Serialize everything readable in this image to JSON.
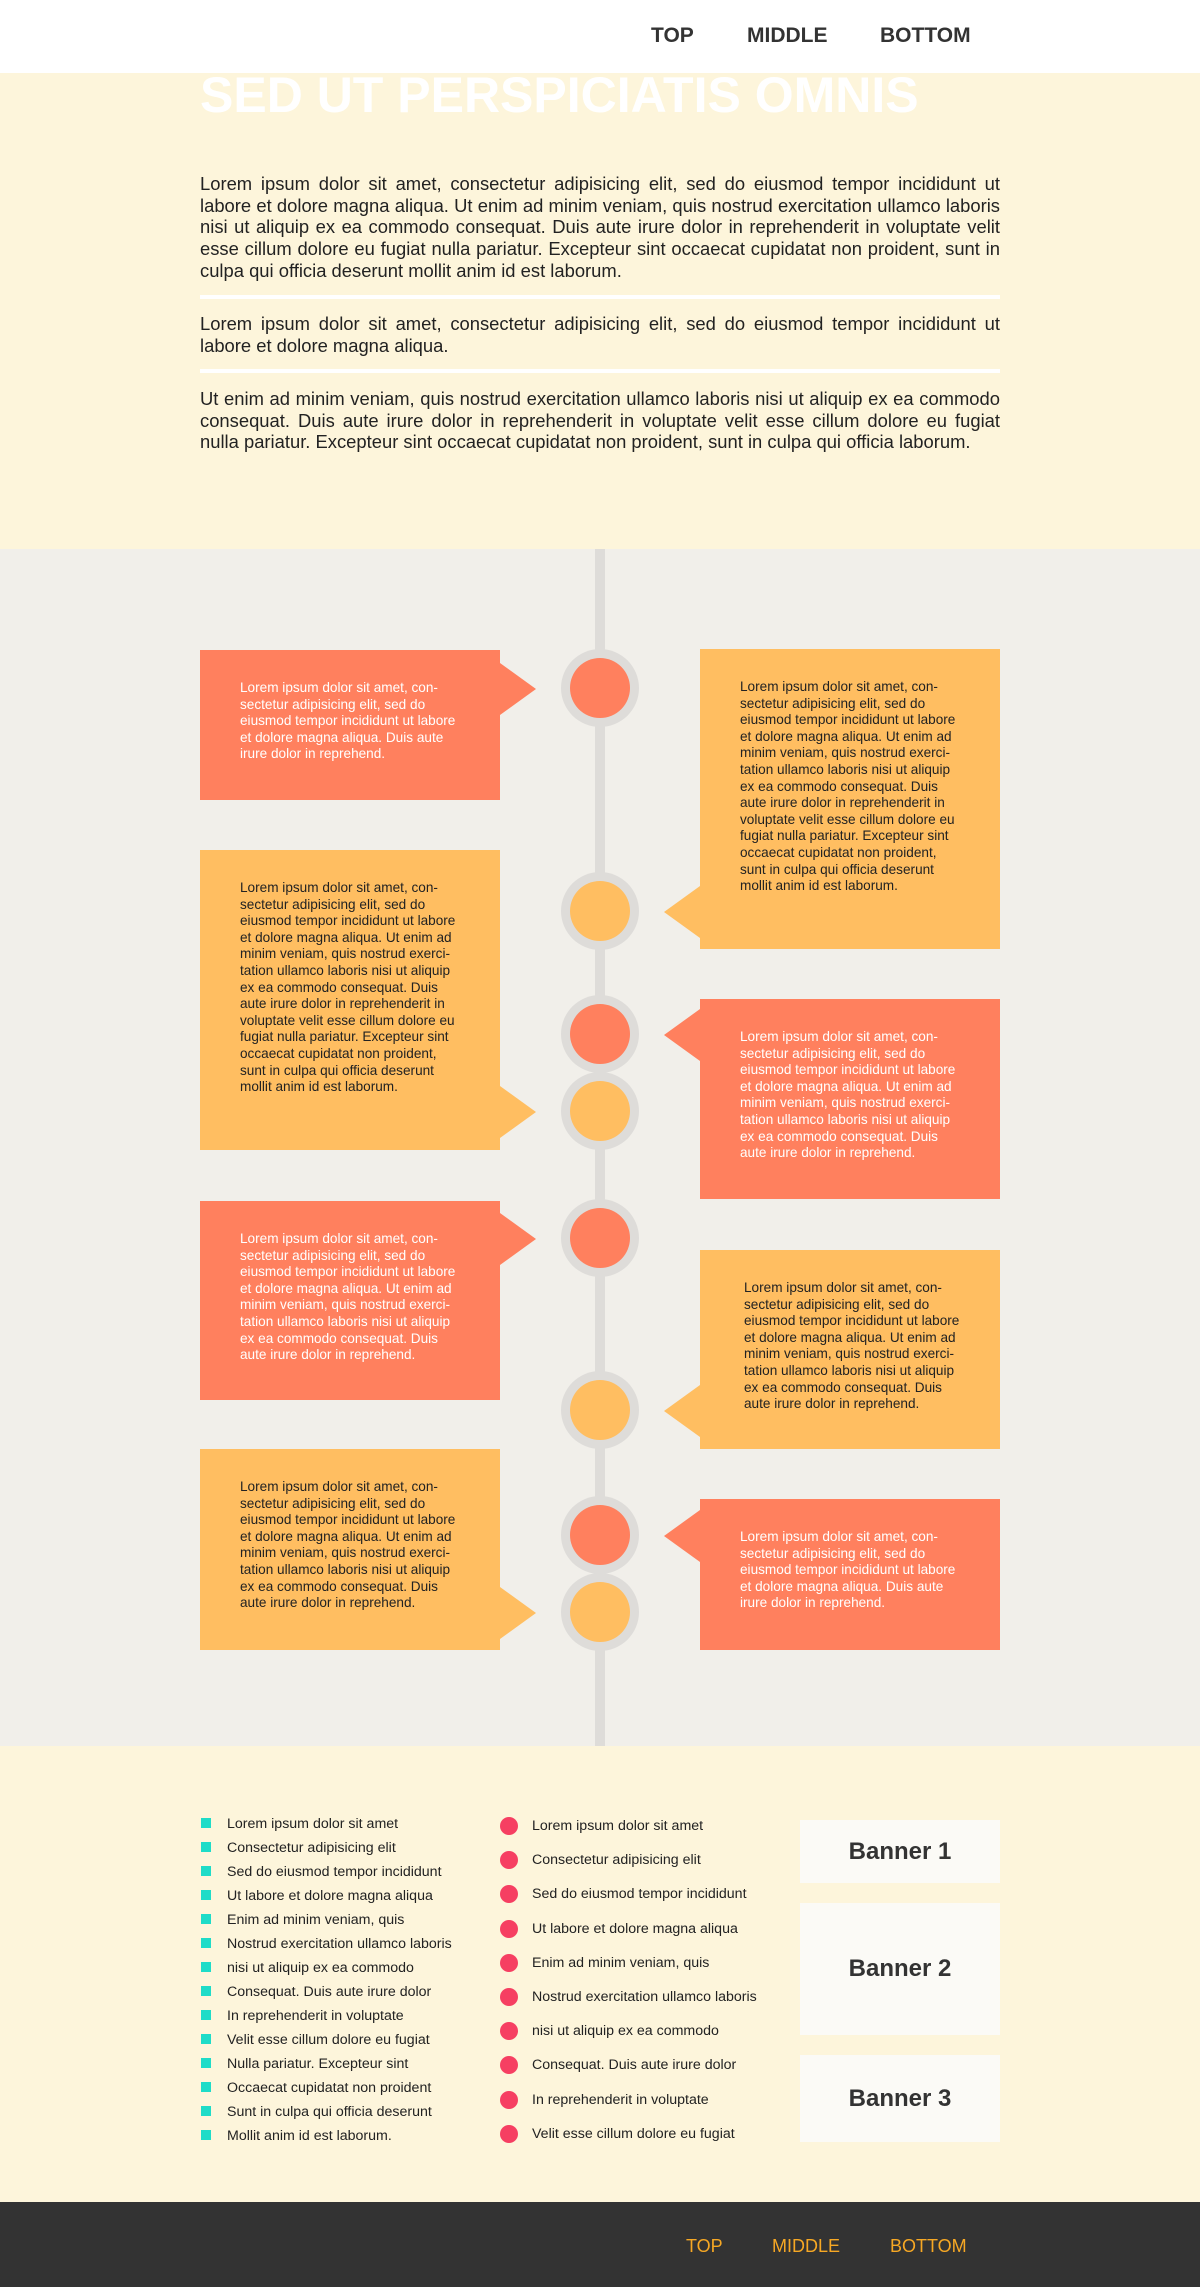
{
  "nav": {
    "top": "TOP",
    "middle": "MIDDLE",
    "bottom": "BOTTOM"
  },
  "hero": {
    "title": "SED UT PERSPICIATIS OMNIS",
    "p1": "Lorem ipsum dolor sit amet, consectetur adipisicing elit, sed do eiusmod tempor incididunt ut labore et dolore magna aliqua. Ut enim ad minim veniam, quis nostrud exercitation ullamco laboris nisi ut aliquip ex ea commodo consequat. Duis aute irure dolor in reprehenderit in voluptate velit esse cillum dolore eu fugiat nulla pariatur. Excepteur sint occaecat cupidatat non proident, sunt in culpa qui officia deserunt mollit anim id est laborum.",
    "p2": "Lorem ipsum dolor sit amet, consectetur adipisicing elit, sed do eiusmod tempor incididunt ut labore et dolore magna aliqua.",
    "p3": "Ut enim ad minim veniam, quis nostrud exercitation ullamco laboris nisi ut aliquip ex ea commodo consequat. Duis aute irure dolor in reprehenderit in voluptate velit esse cillum dolore eu fugiat nulla pariatur. Excepteur sint occaecat cupidatat non proident, sunt in culpa qui officia laborum."
  },
  "timeline": {
    "entries": [
      {
        "text": "Lorem ipsum dolor sit amet, con-sectetur adipisicing elit, sed do eiusmod tempor incididunt ut labore et dolore magna aliqua. Duis aute irure dolor in reprehend.",
        "color": "coral",
        "side": "left"
      },
      {
        "text": "Lorem ipsum dolor sit amet, con-sectetur adipisicing elit, sed do eiusmod tempor incididunt ut labore et dolore magna aliqua. Ut enim ad minim veniam, quis nostrud exerci-tation ullamco laboris nisi ut aliquip ex ea commodo consequat. Duis aute irure dolor in reprehenderit in voluptate velit esse cillum dolore eu fugiat nulla pariatur. Excepteur sint occaecat cupidatat non proident, sunt in culpa qui officia deserunt mollit anim id est laborum.",
        "color": "gold",
        "side": "right"
      },
      {
        "text": "Lorem ipsum dolor sit amet, con-sectetur adipisicing elit, sed do eiusmod tempor incididunt ut labore et dolore magna aliqua. Ut enim ad minim veniam, quis nostrud exerci-tation ullamco laboris nisi ut aliquip ex ea commodo consequat. Duis aute irure dolor in reprehenderit in voluptate velit esse cillum dolore eu fugiat nulla pariatur. Excepteur sint occaecat cupidatat non proident, sunt in culpa qui officia deserunt mollit anim id est laborum.",
        "color": "gold",
        "side": "left"
      },
      {
        "text": "Lorem ipsum dolor sit amet, con-sectetur adipisicing elit, sed do eiusmod tempor incididunt ut labore et dolore magna aliqua. Ut enim ad minim veniam, quis nostrud exerci-tation ullamco laboris nisi ut aliquip ex ea commodo consequat. Duis aute irure dolor in reprehend.",
        "color": "coral",
        "side": "right"
      },
      {
        "text": "Lorem ipsum dolor sit amet, con-sectetur adipisicing elit, sed do eiusmod tempor incididunt ut labore et dolore magna aliqua. Ut enim ad minim veniam, quis nostrud exerci-tation ullamco laboris nisi ut aliquip ex ea commodo consequat. Duis aute irure dolor in reprehend.",
        "color": "coral",
        "side": "left"
      },
      {
        "text": "Lorem ipsum dolor sit amet, con-sectetur adipisicing elit, sed do eiusmod tempor incididunt ut labore et dolore magna aliqua. Ut enim ad minim veniam, quis nostrud exerci-tation ullamco laboris nisi ut aliquip ex ea commodo consequat. Duis aute irure dolor in reprehend.",
        "color": "gold",
        "side": "right"
      },
      {
        "text": "Lorem ipsum dolor sit amet, con-sectetur adipisicing elit, sed do eiusmod tempor incididunt ut labore et dolore magna aliqua. Ut enim ad minim veniam, quis nostrud exerci-tation ullamco laboris nisi ut aliquip ex ea commodo consequat. Duis aute irure dolor in reprehend.",
        "color": "gold",
        "side": "left"
      },
      {
        "text": "Lorem ipsum dolor sit amet, con-sectetur adipisicing elit, sed do eiusmod tempor incididunt ut labore et dolore magna aliqua. Duis aute irure dolor in reprehend.",
        "color": "coral",
        "side": "right"
      }
    ]
  },
  "square_list": [
    "Lorem ipsum dolor sit amet",
    "Consectetur adipisicing elit",
    "Sed do eiusmod tempor incididunt",
    "Ut labore et dolore magna aliqua",
    "Enim ad minim veniam, quis",
    "Nostrud exercitation ullamco laboris",
    "nisi ut aliquip ex ea commodo",
    "Consequat. Duis aute irure dolor",
    "In reprehenderit in voluptate",
    "Velit esse cillum dolore eu fugiat",
    "Nulla pariatur. Excepteur sint",
    "Occaecat cupidatat non proident",
    "Sunt in culpa qui officia deserunt",
    "Mollit anim id est laborum."
  ],
  "dot_list": [
    "Lorem ipsum dolor sit amet",
    "Consectetur adipisicing elit",
    "Sed do eiusmod tempor incididunt",
    "Ut labore et dolore magna aliqua",
    "Enim ad minim veniam, quis",
    "Nostrud exercitation ullamco laboris",
    "nisi ut aliquip ex ea commodo",
    "Consequat. Duis aute irure dolor",
    "In reprehenderit in voluptate",
    "Velit esse cillum dolore eu fugiat"
  ],
  "banners": [
    "Banner 1",
    "Banner 2",
    "Banner 3"
  ],
  "footer_nav": {
    "top": "TOP",
    "middle": "MIDDLE",
    "bottom": "BOTTOM"
  },
  "colors": {
    "coral": "#ff805e",
    "gold": "#ffbe61",
    "teal": "#1fdcc8",
    "pink": "#f63f62",
    "footer_link": "#f7a824"
  }
}
